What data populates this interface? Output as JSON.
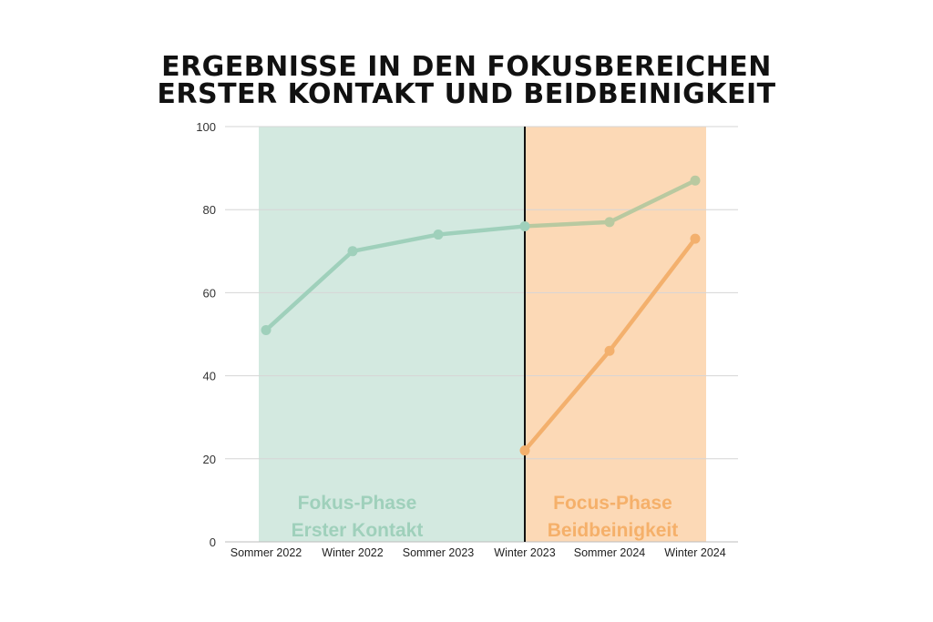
{
  "chart_data": {
    "type": "line",
    "title_lines": [
      "ERGEBNISSE IN DEN FOKUSBEREICHEN",
      "ERSTER KONTAKT UND BEIDBEINIGKEIT"
    ],
    "categories": [
      "Sommer 2022",
      "Winter 2022",
      "Sommer 2023",
      "Winter 2023",
      "Sommer 2024",
      "Winter 2024"
    ],
    "ylim": [
      0,
      100
    ],
    "yticks": [
      0,
      20,
      40,
      60,
      80,
      100
    ],
    "grid": true,
    "series": [
      {
        "values": [
          51,
          70,
          74,
          76,
          77,
          87
        ],
        "colors": [
          "#9fd0bb",
          "#b9c9a0"
        ]
      },
      {
        "values": [
          null,
          null,
          null,
          22,
          46,
          73
        ],
        "color": "#f3b06d"
      }
    ],
    "phases": [
      {
        "label_lines": [
          "Fokus-Phase",
          "Erster Kontakt"
        ],
        "from_index": 0,
        "to_index": 3,
        "fill": "#d3e9e0",
        "label_color": "#9fd0bb"
      },
      {
        "label_lines": [
          "Focus-Phase",
          "Beidbeinigkeit"
        ],
        "from_index": 3,
        "to_index": 5,
        "fill": "#fcd9b6",
        "label_color": "#f5b06a"
      }
    ],
    "divider_at_index": 3
  }
}
